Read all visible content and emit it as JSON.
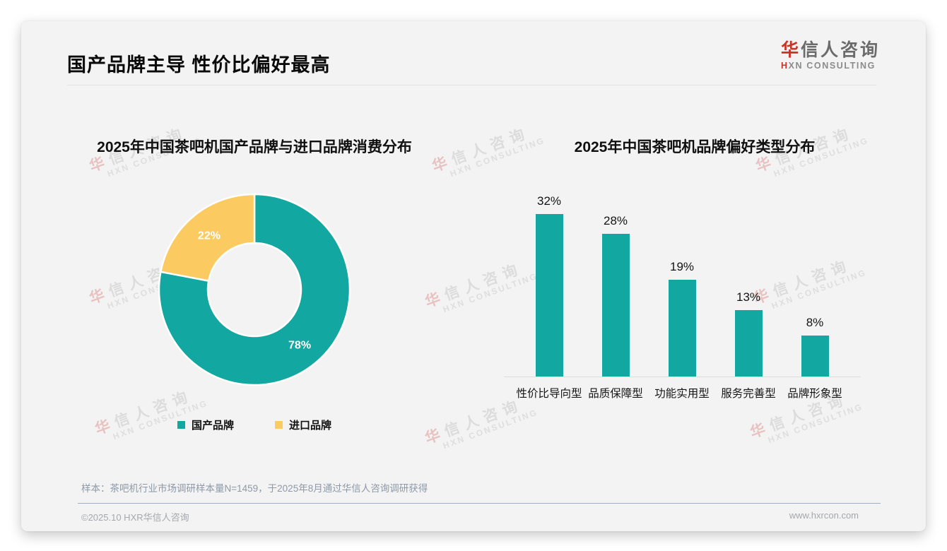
{
  "page": {
    "title": "国产品牌主导 性价比偏好最高",
    "logo": {
      "cn_first": "华",
      "cn_rest": "信人咨询",
      "en": "HXN CONSULTING"
    },
    "watermark": {
      "line1": "华信人咨询",
      "line2": "HXN CONSULTING"
    },
    "sample_note": "样本：茶吧机行业市场调研样本量N=1459，于2025年8月通过华信人咨询调研获得",
    "footer": {
      "copyright": "©2025.10 HXR华信人咨询",
      "website": "www.hxrcon.com"
    }
  },
  "colors": {
    "teal": "#12A7A0",
    "yellow": "#FBCA61",
    "brand_red": "#C9342A",
    "card_background": "#F3F3F4"
  },
  "chart_data": [
    {
      "type": "pie",
      "donut": true,
      "title": "2025年中国茶吧机国产品牌与进口品牌消费分布",
      "labels": [
        "国产品牌",
        "进口品牌"
      ],
      "values": [
        78,
        22
      ],
      "value_labels": [
        "78%",
        "22%"
      ],
      "colors": [
        "#12A7A0",
        "#FBCA61"
      ],
      "legend_position": "bottom",
      "start_angle": "top",
      "direction": "clockwise"
    },
    {
      "type": "bar",
      "title": "2025年中国茶吧机品牌偏好类型分布",
      "categories": [
        "性价比导向型",
        "品质保障型",
        "功能实用型",
        "服务完善型",
        "品牌形象型"
      ],
      "values": [
        32,
        28,
        19,
        13,
        8
      ],
      "value_labels": [
        "32%",
        "28%",
        "19%",
        "13%",
        "8%"
      ],
      "bar_color": "#12A7A0",
      "xlabel": "",
      "ylabel": "",
      "ylim": [
        0,
        35
      ],
      "grid": false,
      "baseline_axis": true
    }
  ]
}
